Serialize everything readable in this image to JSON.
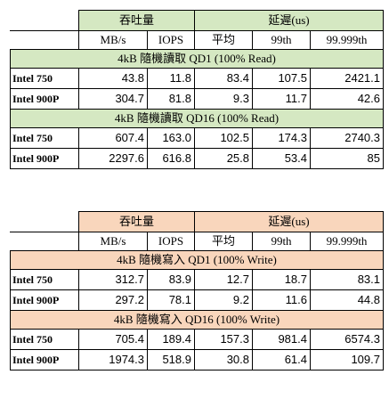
{
  "colors": {
    "read_header_bg": "#d5e8c2",
    "write_header_bg": "#f9d6bc",
    "border": "#000000"
  },
  "read": {
    "throughput_label": "吞吐量",
    "latency_label": "延遲(us)",
    "cols": [
      "MB/s",
      "IOPS",
      "平均",
      "99th",
      "99.999th"
    ],
    "sections": [
      {
        "title": "4kB 隨機讀取 QD1 (100% Read)",
        "rows": [
          {
            "name": "Intel 750",
            "values": [
              "43.8",
              "11.8",
              "83.4",
              "107.5",
              "2421.1"
            ]
          },
          {
            "name": "Intel 900P",
            "values": [
              "304.7",
              "81.8",
              "9.3",
              "11.7",
              "42.6"
            ]
          }
        ]
      },
      {
        "title": "4kB 隨機讀取 QD16 (100% Read)",
        "rows": [
          {
            "name": "Intel 750",
            "values": [
              "607.4",
              "163.0",
              "102.5",
              "174.3",
              "2740.3"
            ]
          },
          {
            "name": "Intel 900P",
            "values": [
              "2297.6",
              "616.8",
              "25.8",
              "53.4",
              "85"
            ]
          }
        ]
      }
    ]
  },
  "write": {
    "throughput_label": "吞吐量",
    "latency_label": "延遲(us)",
    "cols": [
      "MB/s",
      "IOPS",
      "平均",
      "99th",
      "99.999th"
    ],
    "sections": [
      {
        "title": "4kB 隨機寫入 QD1 (100% Write)",
        "rows": [
          {
            "name": "Intel 750",
            "values": [
              "312.7",
              "83.9",
              "12.7",
              "18.7",
              "83.1"
            ]
          },
          {
            "name": "Intel 900P",
            "values": [
              "297.2",
              "78.1",
              "9.2",
              "11.6",
              "44.8"
            ]
          }
        ]
      },
      {
        "title": "4kB 隨機寫入 QD16 (100% Write)",
        "rows": [
          {
            "name": "Intel 750",
            "values": [
              "705.4",
              "189.4",
              "157.3",
              "981.4",
              "6574.3"
            ]
          },
          {
            "name": "Intel 900P",
            "values": [
              "1974.3",
              "518.9",
              "30.8",
              "61.4",
              "109.7"
            ]
          }
        ]
      }
    ]
  }
}
